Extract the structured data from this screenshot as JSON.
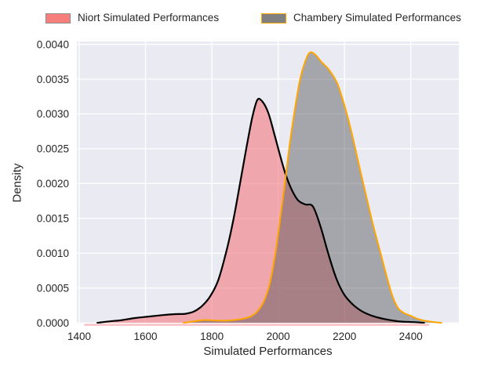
{
  "figure": {
    "background": "#ffffff"
  },
  "legend": {
    "position": "top",
    "items": [
      {
        "label": "Niort Simulated Performances",
        "fill": "#f87e7e",
        "border": "#8c8c8c"
      },
      {
        "label": "Chambery Simulated Performances",
        "fill": "#808080",
        "border": "#ffa500"
      }
    ]
  },
  "chart_data": {
    "type": "area",
    "subtype": "kde-density-overlay",
    "title": "",
    "xlabel": "Simulated Performances",
    "ylabel": "Density",
    "xlim": [
      1393,
      2545
    ],
    "ylim": [
      -1e-05,
      0.00404
    ],
    "grid": true,
    "legend_position": "top-outside",
    "plot_bg": "#eaeaf2",
    "grid_color": "#ffffff",
    "text_color": "#262626",
    "tick_font_px": 13.5,
    "xticks": {
      "values": [
        1400,
        1600,
        1800,
        2000,
        2200,
        2400
      ],
      "labels": [
        "1400",
        "1600",
        "1800",
        "2000",
        "2200",
        "2400"
      ]
    },
    "yticks": {
      "values": [
        0.0,
        0.0005,
        0.001,
        0.0015,
        0.002,
        0.0025,
        0.003,
        0.0035,
        0.004
      ],
      "labels": [
        "0.0000",
        "0.0005",
        "0.0010",
        "0.0015",
        "0.0020",
        "0.0025",
        "0.0030",
        "0.0035",
        "0.0040"
      ]
    },
    "series": [
      {
        "name": "Niort Simulated Performances",
        "line_color": "#000000",
        "line_width": 2.2,
        "fill_color": "rgba(243,110,116,0.55)",
        "peak": {
          "x": 1937,
          "density": 0.0032
        },
        "points": [
          [
            1455,
            0
          ],
          [
            1490,
            2e-05
          ],
          [
            1530,
            4e-05
          ],
          [
            1570,
            7e-05
          ],
          [
            1610,
            9e-05
          ],
          [
            1650,
            0.00011
          ],
          [
            1690,
            0.000125
          ],
          [
            1720,
            0.00013
          ],
          [
            1745,
            0.00016
          ],
          [
            1770,
            0.00024
          ],
          [
            1795,
            0.00038
          ],
          [
            1820,
            0.00062
          ],
          [
            1845,
            0.00105
          ],
          [
            1865,
            0.00148
          ],
          [
            1885,
            0.002
          ],
          [
            1905,
            0.00253
          ],
          [
            1922,
            0.00295
          ],
          [
            1937,
            0.0032
          ],
          [
            1952,
            0.00318
          ],
          [
            1970,
            0.00302
          ],
          [
            1988,
            0.00272
          ],
          [
            2005,
            0.00242
          ],
          [
            2022,
            0.00214
          ],
          [
            2040,
            0.00192
          ],
          [
            2060,
            0.00176
          ],
          [
            2082,
            0.0017
          ],
          [
            2105,
            0.00167
          ],
          [
            2128,
            0.00138
          ],
          [
            2152,
            0.00098
          ],
          [
            2176,
            0.00063
          ],
          [
            2200,
            0.0004
          ],
          [
            2226,
            0.00026
          ],
          [
            2255,
            0.00016
          ],
          [
            2290,
            9e-05
          ],
          [
            2325,
            5e-05
          ],
          [
            2365,
            2e-05
          ],
          [
            2410,
            1e-05
          ],
          [
            2440,
            0
          ]
        ]
      },
      {
        "name": "Chambery Simulated Performances",
        "line_color": "#ffa600",
        "line_width": 2.0,
        "fill_color": "rgba(82,82,90,0.46)",
        "peak": {
          "x": 2095,
          "density": 0.00388
        },
        "points": [
          [
            1715,
            0
          ],
          [
            1745,
            2e-05
          ],
          [
            1775,
            4e-05
          ],
          [
            1805,
            3.5e-05
          ],
          [
            1835,
            3e-05
          ],
          [
            1865,
            4e-05
          ],
          [
            1895,
            6e-05
          ],
          [
            1920,
            0.0001
          ],
          [
            1940,
            0.00018
          ],
          [
            1958,
            0.00032
          ],
          [
            1974,
            0.00055
          ],
          [
            1990,
            0.00095
          ],
          [
            2005,
            0.00145
          ],
          [
            2020,
            0.002
          ],
          [
            2035,
            0.00257
          ],
          [
            2050,
            0.00305
          ],
          [
            2065,
            0.00347
          ],
          [
            2080,
            0.00373
          ],
          [
            2095,
            0.00388
          ],
          [
            2112,
            0.00385
          ],
          [
            2132,
            0.00374
          ],
          [
            2154,
            0.00363
          ],
          [
            2178,
            0.00344
          ],
          [
            2200,
            0.00312
          ],
          [
            2222,
            0.00272
          ],
          [
            2244,
            0.00226
          ],
          [
            2266,
            0.00181
          ],
          [
            2288,
            0.00137
          ],
          [
            2310,
            0.00098
          ],
          [
            2330,
            0.00062
          ],
          [
            2345,
            0.00038
          ],
          [
            2362,
            0.00021
          ],
          [
            2380,
            0.00014
          ],
          [
            2400,
            0.0001
          ],
          [
            2425,
            5e-05
          ],
          [
            2455,
            2e-05
          ],
          [
            2492,
            0
          ]
        ]
      }
    ]
  }
}
